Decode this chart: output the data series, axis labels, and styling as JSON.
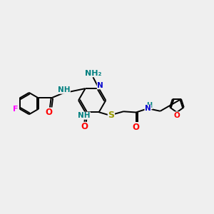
{
  "bg_color": "#efefef",
  "atom_colors": {
    "C": "#000000",
    "N": "#0000cc",
    "O": "#ff0000",
    "F": "#ff00ff",
    "S": "#999900",
    "NH": "#008080",
    "NH2": "#008080"
  },
  "bond_color": "#000000",
  "bond_width": 1.4,
  "font_size": 7.5
}
